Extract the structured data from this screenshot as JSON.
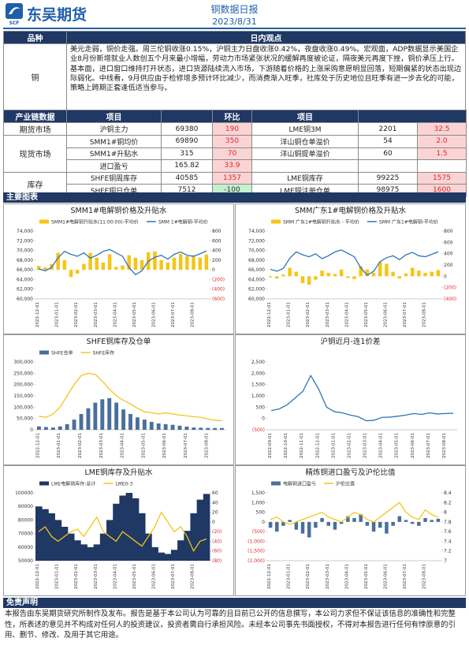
{
  "header": {
    "logo": "东吴期货",
    "logo_sub": "SCF",
    "title": "铜数据日报",
    "date": "2023/8/31"
  },
  "view_table": {
    "header": [
      "品种",
      "日内观点"
    ],
    "variety": "铜",
    "view": "美元走弱，铜价走强。周三伦铜收涨0.15%，沪铜主力日盘收涨0.42%，夜盘收涨0.49%。宏观面，ADP数据显示美国企业8月份新增就业人数创五个月来最小增幅，劳动力市场紧张状况的缓解再度被论证，隔夜美元再度下挫，铜价承压上行。基本面，进口窗口维持打开状态，进口货源陆续流入市场，下游随着价格的上涨采购意愿明显回落，短期偏紧的状态出现边际弱化。中线看，9月供应由于检修增多预计环比减少，而消费渐入旺季，社库处于历史地位且旺季有进一步去化的可能，策略上跨期正套逢低适当参与。"
  },
  "industry_table": {
    "header": [
      "产业链数据",
      "项目",
      "环比",
      "项目"
    ],
    "groups": [
      {
        "label": "期货市场",
        "rows": [
          [
            "沪铜主力",
            "69380",
            "190",
            "LME铜3M",
            "2201",
            "32.5"
          ]
        ]
      },
      {
        "label": "现货市场",
        "rows": [
          [
            "SMM1#铜均价",
            "69890",
            "350",
            "洋山铜仓单溢价",
            "54",
            "2.0"
          ],
          [
            "SMM1#升贴水",
            "315",
            "70",
            "洋山铜提单溢价",
            "60",
            "1.5"
          ],
          [
            "进口盈亏",
            "165.82",
            "33.9"
          ]
        ]
      },
      {
        "label": "库存",
        "rows": [
          [
            "SHFE铜周库存",
            "40585",
            "1357",
            "LME铜库存",
            "99225",
            "1575"
          ],
          [
            "SHFE铜日仓单",
            "7512",
            "-100",
            "LME铜注册仓单",
            "98975",
            "1600"
          ]
        ]
      }
    ]
  },
  "charts_section": "主要图表",
  "charts": [
    {
      "type": "combo",
      "title": "SMM1#电解铜价格及升贴水",
      "x": [
        "2022-12-01",
        null,
        null,
        "2023-01-01",
        null,
        null,
        "2023-02-01",
        null,
        null,
        "2023-03-01",
        null,
        null,
        "2023-04-01",
        null,
        null,
        "2023-05-01",
        null,
        null,
        "2023-06-01",
        null,
        null,
        "2023-07-01",
        null,
        null,
        "2023-08-01",
        null,
        null
      ],
      "ylim": [
        60000,
        74000
      ],
      "yticks": [
        {
          "value": 60000,
          "label": "60,000"
        },
        {
          "value": 62000,
          "label": "62,000"
        },
        {
          "value": 64000,
          "label": "64,000"
        },
        {
          "value": 66000,
          "label": "66,000"
        },
        {
          "value": 68000,
          "label": "68,000"
        },
        {
          "value": 70000,
          "label": "70,000"
        },
        {
          "value": 72000,
          "label": "72,000"
        },
        {
          "value": 74000,
          "label": "74,000"
        }
      ],
      "y2lim": [
        -600,
        800
      ],
      "y2ticks": [
        {
          "value": -600,
          "label": "(600)"
        },
        {
          "value": -400,
          "label": "(400)"
        },
        {
          "value": -200,
          "label": "(200)"
        },
        0,
        200,
        400,
        600,
        800
      ],
      "series": [
        {
          "name": "SMM1#电解铜升贴水(11:00:00)-平均价",
          "type": "bar",
          "axis": "y2",
          "color": "#f5c518",
          "values": [
            80,
            50,
            120,
            350,
            200,
            -150,
            -80,
            120,
            350,
            250,
            150,
            320,
            60,
            90,
            300,
            250,
            200,
            360,
            380,
            200,
            150,
            250,
            330,
            280,
            300,
            250,
            315
          ]
        },
        {
          "name": "SMM 1#电解铜-平均价",
          "type": "line",
          "axis": "y",
          "color": "#2e75b6",
          "values": [
            66200,
            65800,
            66500,
            68500,
            69800,
            69200,
            68800,
            69500,
            68400,
            69000,
            69800,
            70200,
            69500,
            68800,
            66500,
            65000,
            65800,
            67800,
            68600,
            69000,
            68200,
            69200,
            69700,
            69000,
            68800,
            69300,
            69890
          ]
        }
      ]
    },
    {
      "type": "combo",
      "title": "SMM广东1#电解铜价格及升贴水",
      "x": [
        "2022-12-01",
        null,
        null,
        "2023-01-01",
        null,
        null,
        "2023-02-01",
        null,
        null,
        "2023-03-01",
        null,
        null,
        "2023-04-01",
        null,
        null,
        "2023-05-01",
        null,
        null,
        "2023-06-01",
        null,
        null,
        "2023-07-01",
        null,
        null,
        "2023-08-01",
        null,
        null
      ],
      "ylim": [
        60000,
        74000
      ],
      "yticks": [
        {
          "value": 60000,
          "label": "60,000"
        },
        {
          "value": 62000,
          "label": "62,000"
        },
        {
          "value": 64000,
          "label": "64,000"
        },
        {
          "value": 66000,
          "label": "66,000"
        },
        {
          "value": 68000,
          "label": "68,000"
        },
        {
          "value": 70000,
          "label": "70,000"
        },
        {
          "value": 72000,
          "label": "72,000"
        },
        {
          "value": 74000,
          "label": "74,000"
        }
      ],
      "y2lim": [
        -400,
        800
      ],
      "y2ticks": [
        {
          "value": -400,
          "label": "(400)"
        },
        {
          "value": -200,
          "label": "(200)"
        },
        0,
        200,
        400,
        600,
        800
      ],
      "series": [
        {
          "name": "SMM 广东1#电解铜升贴水 - 平均价",
          "type": "bar",
          "axis": "y2",
          "color": "#f5c518",
          "values": [
            -20,
            -40,
            30,
            150,
            80,
            -120,
            -150,
            -60,
            100,
            60,
            40,
            120,
            -30,
            -50,
            180,
            120,
            60,
            250,
            220,
            80,
            -40,
            50,
            150,
            100,
            60,
            80,
            110
          ]
        },
        {
          "name": "SMM 广东1#电解铜-平均价",
          "type": "line",
          "axis": "y",
          "color": "#2e75b6",
          "values": [
            66100,
            65700,
            66300,
            68400,
            69700,
            69100,
            68700,
            69300,
            68300,
            68900,
            69700,
            70100,
            69400,
            68700,
            66400,
            64900,
            65700,
            67700,
            68500,
            68900,
            68100,
            69100,
            69600,
            68900,
            68700,
            69200,
            69700
          ]
        }
      ]
    },
    {
      "type": "combo",
      "title": "SHFE铜库存及仓单",
      "x": [
        "2022-12-01",
        null,
        null,
        "2023-01-01",
        null,
        null,
        "2023-02-01",
        null,
        null,
        "2023-03-01",
        null,
        null,
        "2023-04-01",
        null,
        null,
        "2023-05-01",
        null,
        null,
        "2023-06-01",
        null,
        null,
        "2023-07-01",
        null,
        null,
        "2023-08-01",
        null,
        null
      ],
      "ylim": [
        0,
        300000
      ],
      "yticks": [
        0,
        {
          "value": 50000,
          "label": "50,000"
        },
        {
          "value": 100000,
          "label": "100,000"
        },
        {
          "value": 150000,
          "label": "150,000"
        },
        {
          "value": 200000,
          "label": "200,000"
        },
        {
          "value": 250000,
          "label": "250,000"
        },
        {
          "value": 300000,
          "label": "300,000"
        }
      ],
      "series": [
        {
          "name": "SHFE仓单",
          "type": "bar",
          "axis": "y",
          "color": "#4a6f9c",
          "values": [
            15000,
            12000,
            10000,
            15000,
            25000,
            45000,
            70000,
            95000,
            120000,
            135000,
            140000,
            120000,
            90000,
            70000,
            55000,
            45000,
            35000,
            28000,
            25000,
            22000,
            18000,
            14000,
            10000,
            9000,
            8000,
            7800,
            7512
          ]
        },
        {
          "name": "SHFE库存",
          "type": "line",
          "axis": "y",
          "color": "#f5c518",
          "values": [
            60000,
            55000,
            70000,
            100000,
            150000,
            200000,
            240000,
            250000,
            245000,
            215000,
            180000,
            150000,
            130000,
            115000,
            95000,
            80000,
            75000,
            70000,
            75000,
            70000,
            65000,
            62000,
            58000,
            55000,
            48000,
            42000,
            40585
          ]
        }
      ]
    },
    {
      "type": "line",
      "title": "沪铜近月-连1价差",
      "x": [
        "2022-09-01",
        null,
        "2022-10-01",
        null,
        "2022-11-01",
        null,
        "2022-12-01",
        null,
        "2023-01-01",
        null,
        "2023-02-01",
        null,
        "2023-03-01",
        null,
        "2023-04-01",
        null,
        "2023-05-01",
        null,
        "2023-06-01",
        null,
        "2023-07-01",
        null,
        "2023-08-01",
        null
      ],
      "ylim": [
        -500,
        2500
      ],
      "yticks": [
        {
          "value": -500,
          "label": "(500)"
        },
        0,
        500,
        {
          "value": 1000,
          "label": "1,000"
        },
        {
          "value": 1500,
          "label": "1,500"
        },
        {
          "value": 2000,
          "label": "2,000"
        },
        {
          "value": 2500,
          "label": "2,500"
        }
      ],
      "series": [
        {
          "type": "line",
          "axis": "y",
          "color": "#2e75b6",
          "values": [
            350,
            420,
            600,
            900,
            1200,
            1900,
            1300,
            500,
            300,
            250,
            150,
            80,
            -100,
            -80,
            50,
            60,
            100,
            150,
            220,
            180,
            250,
            200,
            220,
            230
          ]
        }
      ]
    },
    {
      "type": "combo",
      "title": "LME铜库存及升贴水",
      "x": [
        "2022-12-01",
        null,
        null,
        "2023-01-01",
        null,
        null,
        "2023-02-01",
        null,
        null,
        "2023-03-01",
        null,
        null,
        "2023-04-01",
        null,
        null,
        "2023-05-01",
        null,
        null,
        "2023-06-01",
        null,
        null,
        "2023-07-01",
        null,
        null,
        "2023-08-01",
        null,
        null
      ],
      "ylim": [
        50000,
        100000
      ],
      "yticks": [
        50000,
        60000,
        70000,
        80000,
        90000,
        100000
      ],
      "y2lim": [
        -80,
        60
      ],
      "y2ticks": [
        {
          "value": -80,
          "label": "(80)"
        },
        {
          "value": -60,
          "label": "(60)"
        },
        {
          "value": -40,
          "label": "(40)"
        },
        {
          "value": -20,
          "label": "(20)"
        },
        0,
        20,
        40,
        60
      ],
      "series": [
        {
          "name": "LME电解铜库存:总计",
          "type": "area",
          "axis": "y",
          "color": "#1f3864",
          "values": [
            90000,
            88000,
            85000,
            80000,
            75000,
            70000,
            65000,
            62000,
            60000,
            62000,
            70000,
            80000,
            92000,
            98000,
            100000,
            96000,
            85000,
            70000,
            60000,
            56000,
            55000,
            58000,
            65000,
            72000,
            85000,
            95000,
            99225
          ]
        },
        {
          "name": "LME0-3",
          "type": "line",
          "axis": "y2",
          "color": "#f5c518",
          "values": [
            -20,
            -10,
            -30,
            -40,
            -30,
            -20,
            -15,
            -30,
            -10,
            10,
            -20,
            -30,
            -40,
            -20,
            -30,
            -40,
            -50,
            -30,
            -10,
            20,
            0,
            -20,
            -10,
            -30,
            -60,
            -40,
            -35
          ]
        }
      ]
    },
    {
      "type": "combo",
      "title": "精炼铜进口盈亏及沪伦比值",
      "x": [
        "2022-12-01",
        null,
        null,
        "2023-01-01",
        null,
        null,
        "2023-02-01",
        null,
        null,
        "2023-03-01",
        null,
        null,
        "2023-04-01",
        null,
        null,
        "2023-05-01",
        null,
        null,
        "2023-06-01",
        null,
        null,
        "2023-07-01",
        null,
        null,
        "2023-08-01",
        null,
        null
      ],
      "ylim": [
        -2000,
        1500
      ],
      "yticks": [
        {
          "value": -2000,
          "label": "(2,000)"
        },
        {
          "value": -1500,
          "label": "(1,500)"
        },
        {
          "value": -1000,
          "label": "(1,000)"
        },
        {
          "value": -500,
          "label": "(500)"
        },
        0,
        500,
        {
          "value": 1000,
          "label": "1,000"
        },
        {
          "value": 1500,
          "label": "1,500"
        }
      ],
      "y2lim": [
        7,
        8.4
      ],
      "y2ticks": [
        7,
        7.2,
        7.4,
        7.6,
        7.8,
        8,
        8.2,
        8.4
      ],
      "series": [
        {
          "name": "电解铜进口盈亏",
          "type": "bar",
          "axis": "y",
          "color": "#4a6f9c",
          "values": [
            -300,
            -500,
            -200,
            100,
            -400,
            -600,
            -800,
            -300,
            200,
            -200,
            -400,
            -100,
            300,
            200,
            400,
            -200,
            -500,
            -300,
            -600,
            -200,
            300,
            100,
            -100,
            -200,
            200,
            100,
            165.82
          ]
        },
        {
          "name": "沪伦比值",
          "type": "line",
          "axis": "y2",
          "color": "#f5c518",
          "values": [
            7.85,
            7.9,
            7.8,
            7.75,
            7.8,
            7.85,
            7.9,
            7.95,
            8.0,
            7.9,
            7.85,
            7.8,
            7.9,
            8.0,
            7.95,
            7.85,
            7.8,
            7.9,
            8.0,
            8.1,
            8.2,
            8.0,
            7.9,
            7.85,
            8.05,
            7.95,
            7.9
          ]
        }
      ]
    }
  ],
  "disclaimer": {
    "title": "免责声明",
    "text": "本报告由东吴期货研究所制作及发布。报告是基于本公司认为可靠的且目前已公开的信息撰写，本公司力求但不保证该信息的准确性和完整性，所表述的意见并不构成对任何人的投资建议，投资者需自行承担风险。未经本公司事先书面授权，不得对本报告进行任何有悖原意的引用、删节、修改、及用于其它用途。"
  }
}
